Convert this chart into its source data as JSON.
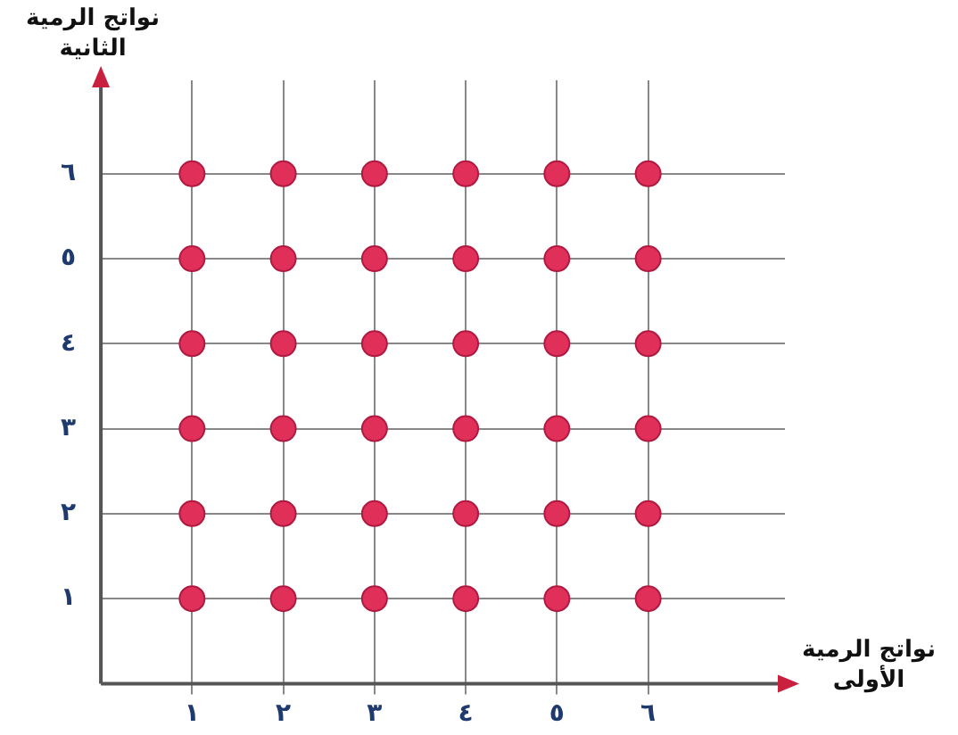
{
  "chart_data": {
    "type": "scatter",
    "xlabel": "نواتج الرمية الأولى",
    "ylabel": "نواتج الرمية الثانية",
    "x": [
      1,
      2,
      3,
      4,
      5,
      6,
      1,
      2,
      3,
      4,
      5,
      6,
      1,
      2,
      3,
      4,
      5,
      6,
      1,
      2,
      3,
      4,
      5,
      6,
      1,
      2,
      3,
      4,
      5,
      6,
      1,
      2,
      3,
      4,
      5,
      6
    ],
    "values": [
      1,
      1,
      1,
      1,
      1,
      1,
      2,
      2,
      2,
      2,
      2,
      2,
      3,
      3,
      3,
      3,
      3,
      3,
      4,
      4,
      4,
      4,
      4,
      4,
      5,
      5,
      5,
      5,
      5,
      5,
      6,
      6,
      6,
      6,
      6,
      6
    ],
    "color": "#e0305a",
    "marker": "circle",
    "legend": false,
    "grid": true,
    "xlim": [
      0,
      7.5
    ],
    "ylim": [
      0,
      7.1
    ],
    "xticks": [
      {
        "value": 1,
        "label": "١"
      },
      {
        "value": 2,
        "label": "٢"
      },
      {
        "value": 3,
        "label": "٣"
      },
      {
        "value": 4,
        "label": "٤"
      },
      {
        "value": 5,
        "label": "٥"
      },
      {
        "value": 6,
        "label": "٦"
      }
    ],
    "yticks": [
      {
        "value": 1,
        "label": "١"
      },
      {
        "value": 2,
        "label": "٢"
      },
      {
        "value": 3,
        "label": "٣"
      },
      {
        "value": 4,
        "label": "٤"
      },
      {
        "value": 5,
        "label": "٥"
      },
      {
        "value": 6,
        "label": "٦"
      }
    ]
  }
}
